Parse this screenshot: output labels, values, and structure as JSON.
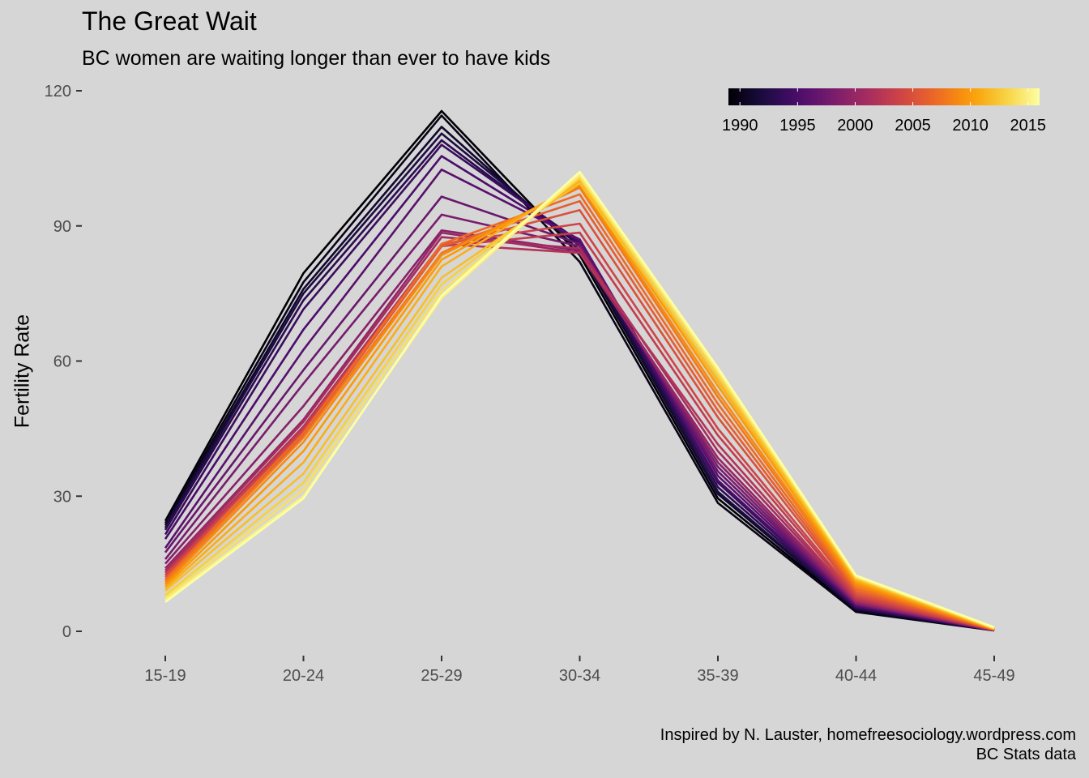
{
  "chart_data": {
    "type": "line",
    "title": "The Great Wait",
    "subtitle": "BC women are waiting longer than ever to have kids",
    "xlabel": "",
    "ylabel": "Fertility Rate",
    "categories": [
      "15-19",
      "20-24",
      "25-29",
      "30-34",
      "35-39",
      "40-44",
      "45-49"
    ],
    "ylim": [
      0,
      120
    ],
    "yticks": [
      0,
      30,
      60,
      90,
      120
    ],
    "grid": false,
    "legend": {
      "type": "colorbar",
      "placement": "top-right",
      "range": [
        1989,
        2016
      ],
      "ticks": [
        1990,
        1995,
        2000,
        2005,
        2010,
        2015
      ],
      "palette": [
        "#000004",
        "#1b0c41",
        "#4a0c6b",
        "#781c6d",
        "#a52c60",
        "#cf4446",
        "#ed6925",
        "#fb9b06",
        "#f7d13d",
        "#fcffa4"
      ]
    },
    "series": [
      {
        "year": 1989,
        "values": [
          24.5,
          79.5,
          115.5,
          83.5,
          29.5,
          4.5,
          0.2
        ]
      },
      {
        "year": 1990,
        "values": [
          24.0,
          77.5,
          114.5,
          82.0,
          28.5,
          4.3,
          0.2
        ]
      },
      {
        "year": 1991,
        "values": [
          23.5,
          76.0,
          112.0,
          84.5,
          30.5,
          4.8,
          0.2
        ]
      },
      {
        "year": 1992,
        "values": [
          23.0,
          75.0,
          110.5,
          85.5,
          31.0,
          5.0,
          0.2
        ]
      },
      {
        "year": 1993,
        "values": [
          22.5,
          73.5,
          109.0,
          86.0,
          32.0,
          5.2,
          0.2
        ]
      },
      {
        "year": 1994,
        "values": [
          21.5,
          71.5,
          108.0,
          86.5,
          33.0,
          5.4,
          0.2
        ]
      },
      {
        "year": 1995,
        "values": [
          20.5,
          67.0,
          105.5,
          86.5,
          33.5,
          5.6,
          0.2
        ]
      },
      {
        "year": 1996,
        "values": [
          18.5,
          62.5,
          102.5,
          87.0,
          34.5,
          5.8,
          0.2
        ]
      },
      {
        "year": 1997,
        "values": [
          17.5,
          58.0,
          96.5,
          86.0,
          35.5,
          6.0,
          0.2
        ]
      },
      {
        "year": 1998,
        "values": [
          16.0,
          55.0,
          92.5,
          85.5,
          36.5,
          6.1,
          0.2
        ]
      },
      {
        "year": 1999,
        "values": [
          15.0,
          50.0,
          89.0,
          84.5,
          37.5,
          6.3,
          0.2
        ]
      },
      {
        "year": 2000,
        "values": [
          14.0,
          47.0,
          88.5,
          84.0,
          38.5,
          6.5,
          0.3
        ]
      },
      {
        "year": 2001,
        "values": [
          13.5,
          46.5,
          87.5,
          85.0,
          40.0,
          6.8,
          0.3
        ]
      },
      {
        "year": 2002,
        "values": [
          13.0,
          45.5,
          86.0,
          84.0,
          41.5,
          7.0,
          0.3
        ]
      },
      {
        "year": 2003,
        "values": [
          12.5,
          45.0,
          85.5,
          88.5,
          43.5,
          7.4,
          0.3
        ]
      },
      {
        "year": 2004,
        "values": [
          12.5,
          44.5,
          86.0,
          90.5,
          45.0,
          7.8,
          0.3
        ]
      },
      {
        "year": 2005,
        "values": [
          12.0,
          43.5,
          85.5,
          93.5,
          47.5,
          8.3,
          0.3
        ]
      },
      {
        "year": 2006,
        "values": [
          11.5,
          43.5,
          85.5,
          95.5,
          49.0,
          8.8,
          0.4
        ]
      },
      {
        "year": 2007,
        "values": [
          11.5,
          44.0,
          86.0,
          97.0,
          50.5,
          9.3,
          0.4
        ]
      },
      {
        "year": 2008,
        "values": [
          11.0,
          43.0,
          84.0,
          98.5,
          52.0,
          9.8,
          0.4
        ]
      },
      {
        "year": 2009,
        "values": [
          10.5,
          42.0,
          83.5,
          99.0,
          53.0,
          10.3,
          0.5
        ]
      },
      {
        "year": 2010,
        "values": [
          10.0,
          40.0,
          82.5,
          99.5,
          54.5,
          10.8,
          0.5
        ]
      },
      {
        "year": 2011,
        "values": [
          9.5,
          37.5,
          81.0,
          100.0,
          55.5,
          11.2,
          0.6
        ]
      },
      {
        "year": 2012,
        "values": [
          9.0,
          35.0,
          78.5,
          99.5,
          56.0,
          11.6,
          0.6
        ]
      },
      {
        "year": 2013,
        "values": [
          8.0,
          33.0,
          77.0,
          100.5,
          57.0,
          11.9,
          0.7
        ]
      },
      {
        "year": 2014,
        "values": [
          7.5,
          31.5,
          75.5,
          101.0,
          57.5,
          12.0,
          0.8
        ]
      },
      {
        "year": 2015,
        "values": [
          7.0,
          30.0,
          74.0,
          101.5,
          58.0,
          12.2,
          0.8
        ]
      },
      {
        "year": 2016,
        "values": [
          6.5,
          29.5,
          74.5,
          102.0,
          58.5,
          12.4,
          0.9
        ]
      }
    ]
  },
  "caption": {
    "line1": "Inspired by N. Lauster, homefreesociology.wordpress.com",
    "line2": "BC Stats data"
  }
}
